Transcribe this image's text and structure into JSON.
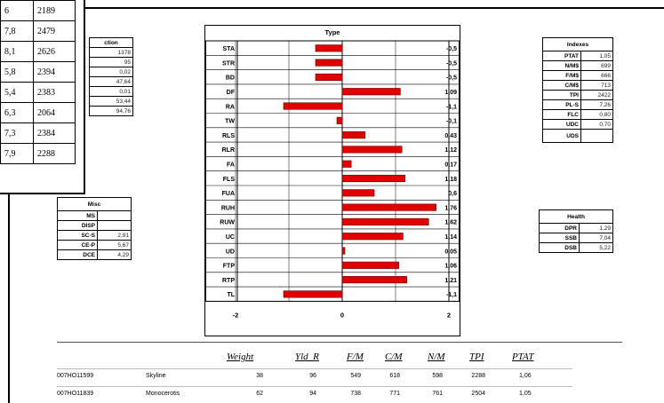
{
  "overlay_table": [
    [
      "6",
      "2189"
    ],
    [
      "7,8",
      "2479"
    ],
    [
      "8,1",
      "2626"
    ],
    [
      "5,8",
      "2394"
    ],
    [
      "5,4",
      "2383"
    ],
    [
      "6,3",
      "2064"
    ],
    [
      "7,3",
      "2384"
    ],
    [
      "7,9",
      "2288"
    ]
  ],
  "production": {
    "title": "ction",
    "values": [
      "1378",
      "95",
      "0,02",
      "47,64",
      "0,01",
      "53,44",
      "94,76"
    ]
  },
  "misc": {
    "title": "Misc",
    "rows": [
      {
        "k": "MS",
        "v": ""
      },
      {
        "k": "DISP",
        "v": ""
      },
      {
        "k": "SC-S",
        "v": "2,91"
      },
      {
        "k": "CE-P",
        "v": "5,67"
      },
      {
        "k": "DCE",
        "v": "4,29"
      }
    ]
  },
  "indexes": {
    "title": "Indexes",
    "rows": [
      {
        "k": "PTAT",
        "v": "1,05"
      },
      {
        "k": "N/M$",
        "v": "699"
      },
      {
        "k": "F/M$",
        "v": "666"
      },
      {
        "k": "C/M$",
        "v": "713"
      },
      {
        "k": "TPI",
        "v": "2422"
      },
      {
        "k": "PL-S",
        "v": "7,26"
      },
      {
        "k": "FLC",
        "v": "0,80"
      },
      {
        "k": "UDC",
        "v": "0,70"
      },
      {
        "k": "UDS",
        "v": ""
      }
    ]
  },
  "health": {
    "title": "Health",
    "rows": [
      {
        "k": "DPR",
        "v": "1,29"
      },
      {
        "k": "SSB",
        "v": "7,04"
      },
      {
        "k": "DSB",
        "v": "5,22"
      }
    ]
  },
  "chart_data": {
    "type": "bar",
    "orientation": "horizontal",
    "title": "Type",
    "categories": [
      "STA",
      "STR",
      "BD",
      "DF",
      "RA",
      "TW",
      "RLS",
      "RLR",
      "FA",
      "FLS",
      "FUA",
      "RUH",
      "RUW",
      "UC",
      "UD",
      "FTP",
      "RTP",
      "TL"
    ],
    "values": [
      -0.5,
      -0.5,
      -0.5,
      1.09,
      -1.1,
      -0.1,
      0.43,
      1.12,
      0.17,
      1.18,
      0.6,
      1.76,
      1.62,
      1.14,
      0.05,
      1.06,
      1.21,
      -1.1
    ],
    "value_labels": [
      "-0,5",
      "-0,5",
      "-0,5",
      "1,09",
      "-1,1",
      "-0,1",
      "0,43",
      "1,12",
      "0,17",
      "1,18",
      "0,6",
      "1,76",
      "1,62",
      "1,14",
      "0,05",
      "1,06",
      "1,21",
      "-1,1"
    ],
    "xlim": [
      -2,
      2
    ],
    "xticks": [
      "-2",
      "0",
      "2"
    ],
    "bar_color": "#e00000"
  },
  "bottom": {
    "headers": [
      "Weight",
      "Yld_R",
      "F/M",
      "C/M",
      "N/M",
      "TPI",
      "PTAT"
    ],
    "rows": [
      {
        "id": "007HO11599",
        "name": "Skyline",
        "vals": [
          "38",
          "96",
          "549",
          "618",
          "598",
          "2288",
          "1,06"
        ]
      },
      {
        "id": "007HO11839",
        "name": "Monocerotis",
        "vals": [
          "62",
          "94",
          "738",
          "771",
          "761",
          "2504",
          "1,05"
        ]
      }
    ]
  }
}
